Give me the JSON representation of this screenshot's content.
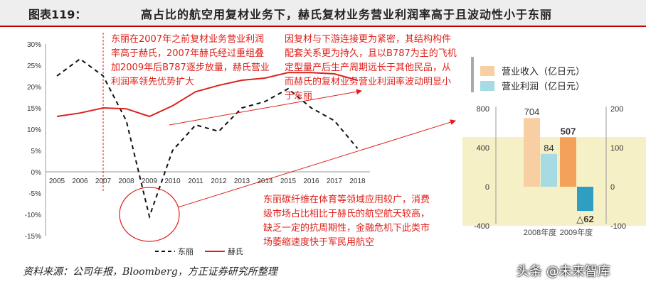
{
  "header": {
    "label": "图表119：",
    "title": "高占比的航空用复材业务下，赫氏复材业务营业利润率高于且波动性小于东丽"
  },
  "notes": {
    "n1": "东丽在2007年之前复材业务营业利润率高于赫氏，2007年赫氏经过重组叠加2009年后B787逐步放量，赫氏营业利润率领先优势扩大",
    "n2": "因复材与下游连接更为紧密，其结构构件配套关系更为持久，且以B787为主的飞机定型量产后生产周期远长于其他民品，从而赫氏的复材业务营业利润率波动明显小于东丽",
    "n3": "东丽碳纤维在体育等领域应用较广，消费级市场占比相比于赫氏的航空航天较高，缺乏一定的抗周期性，金融危机下此类市场萎缩速度快于军民用航空"
  },
  "source": "资料来源：公司年报，Bloomberg，方正证券研究所整理",
  "watermark": "头条 @未来智库",
  "colors": {
    "toray": "#111111",
    "hexcel": "#d9231f",
    "annotation": "#e0201a",
    "revenue": "#f8cfa3",
    "profit": "#a6dbe4",
    "revenue_dark": "#f4a259",
    "profit_dark": "#2e9fc2",
    "highlight": "#f6f0c6"
  },
  "chart_data": [
    {
      "type": "line",
      "categories": [
        "2005",
        "2006",
        "2007",
        "2008",
        "2009",
        "2010",
        "2011",
        "2012",
        "2013",
        "2014",
        "2015",
        "2016",
        "2017",
        "2018"
      ],
      "series": [
        {
          "name": "东丽",
          "style": "dashed",
          "values": [
            22.5,
            26.5,
            22.5,
            12,
            -10.5,
            5,
            11,
            9.5,
            15,
            16.5,
            19.5,
            15,
            12,
            5.5
          ]
        },
        {
          "name": "赫氏",
          "style": "solid",
          "values": [
            13,
            13.8,
            15,
            14.8,
            13,
            15.5,
            18.8,
            20.3,
            21.5,
            22,
            23.3,
            23.3,
            23,
            21.5
          ]
        }
      ],
      "ylim": [
        -15,
        30
      ],
      "yticks": [
        "-15%",
        "-10%",
        "-5%",
        "0%",
        "5%",
        "10%",
        "15%",
        "20%",
        "25%",
        "30%"
      ],
      "legend": [
        "东丽",
        "赫氏"
      ],
      "legend_position": "bottom"
    },
    {
      "type": "bar",
      "categories": [
        "2008年度",
        "2009年度"
      ],
      "series": [
        {
          "name": "营业收入（亿日元）",
          "axis": "left",
          "values": [
            704,
            507
          ]
        },
        {
          "name": "营业利润（亿日元）",
          "axis": "right",
          "values": [
            84,
            -62
          ]
        }
      ],
      "data_labels": {
        "revenue": [
          "704",
          "507"
        ],
        "profit": [
          "84",
          "△62"
        ]
      },
      "ylim_left": [
        -400,
        800
      ],
      "yticks_left": [
        "-400",
        "0",
        "400",
        "800"
      ],
      "ylim_right": [
        -100,
        200
      ],
      "yticks_right": [
        "-100",
        "0",
        "100",
        "200"
      ],
      "legend_position": "top"
    }
  ]
}
